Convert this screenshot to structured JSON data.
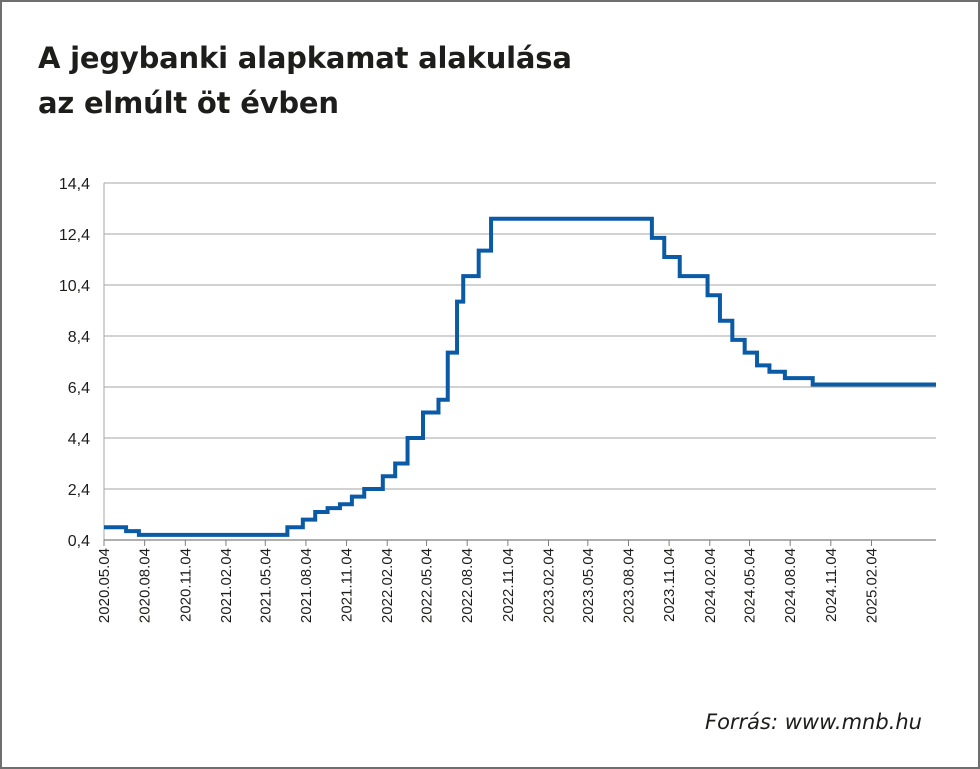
{
  "title": {
    "line1": "A jegybanki alapkamat alakulása",
    "line2": "az elmúlt öt évben"
  },
  "source": "Forrás: www.mnb.hu",
  "chart_data": {
    "type": "line",
    "title": "A jegybanki alapkamat alakulása az elmúlt öt évben",
    "xlabel": "",
    "ylabel": "",
    "ylim": [
      0.4,
      14.4
    ],
    "yticks": [
      "0,4",
      "2,4",
      "4,4",
      "6,4",
      "8,4",
      "10,4",
      "12,4",
      "14,4"
    ],
    "ytick_values": [
      0.4,
      2.4,
      4.4,
      6.4,
      8.4,
      10.4,
      12.4,
      14.4
    ],
    "xlim": [
      "2020-05-04",
      "2025-06-30"
    ],
    "xticks": [
      "2020.05.04",
      "2020.08.04",
      "2020.11.04",
      "2021.02.04",
      "2021.05.04",
      "2021.08.04",
      "2021.11.04",
      "2022.02.04",
      "2022.05.04",
      "2022.08.04",
      "2022.11.04",
      "2023.02.04",
      "2023.05.04",
      "2023.08.04",
      "2023.11.04",
      "2024.02.04",
      "2024.05.04",
      "2024.08.04",
      "2024.11.04",
      "2025.02.04"
    ],
    "xtick_dates": [
      "2020-05-04",
      "2020-08-04",
      "2020-11-04",
      "2021-02-04",
      "2021-05-04",
      "2021-08-04",
      "2021-11-04",
      "2022-02-04",
      "2022-05-04",
      "2022-08-04",
      "2022-11-04",
      "2023-02-04",
      "2023-05-04",
      "2023-08-04",
      "2023-11-04",
      "2024-02-04",
      "2024-05-04",
      "2024-08-04",
      "2024-11-04",
      "2025-02-04"
    ],
    "grid": "horizontal",
    "line_color": "#0b5aa6",
    "grid_color": "#a6a6a6",
    "series": [
      {
        "step": true,
        "points": [
          [
            "2020-05-04",
            0.9
          ],
          [
            "2020-06-23",
            0.75
          ],
          [
            "2020-07-22",
            0.6
          ],
          [
            "2021-06-23",
            0.9
          ],
          [
            "2021-07-28",
            1.2
          ],
          [
            "2021-08-25",
            1.5
          ],
          [
            "2021-09-22",
            1.65
          ],
          [
            "2021-10-20",
            1.8
          ],
          [
            "2021-11-16",
            2.1
          ],
          [
            "2021-12-14",
            2.4
          ],
          [
            "2022-01-25",
            2.9
          ],
          [
            "2022-02-22",
            3.4
          ],
          [
            "2022-03-22",
            4.4
          ],
          [
            "2022-04-26",
            5.4
          ],
          [
            "2022-05-31",
            5.9
          ],
          [
            "2022-06-21",
            7.75
          ],
          [
            "2022-07-12",
            9.75
          ],
          [
            "2022-07-26",
            10.75
          ],
          [
            "2022-08-30",
            11.75
          ],
          [
            "2022-09-27",
            13.0
          ],
          [
            "2023-09-26",
            12.25
          ],
          [
            "2023-10-24",
            11.5
          ],
          [
            "2023-11-28",
            10.75
          ],
          [
            "2024-01-30",
            10.0
          ],
          [
            "2024-02-27",
            9.0
          ],
          [
            "2024-03-26",
            8.25
          ],
          [
            "2024-04-23",
            7.75
          ],
          [
            "2024-05-21",
            7.25
          ],
          [
            "2024-06-18",
            7.0
          ],
          [
            "2024-07-23",
            6.75
          ],
          [
            "2024-09-24",
            6.5
          ],
          [
            "2025-06-30",
            6.5
          ]
        ]
      }
    ]
  }
}
